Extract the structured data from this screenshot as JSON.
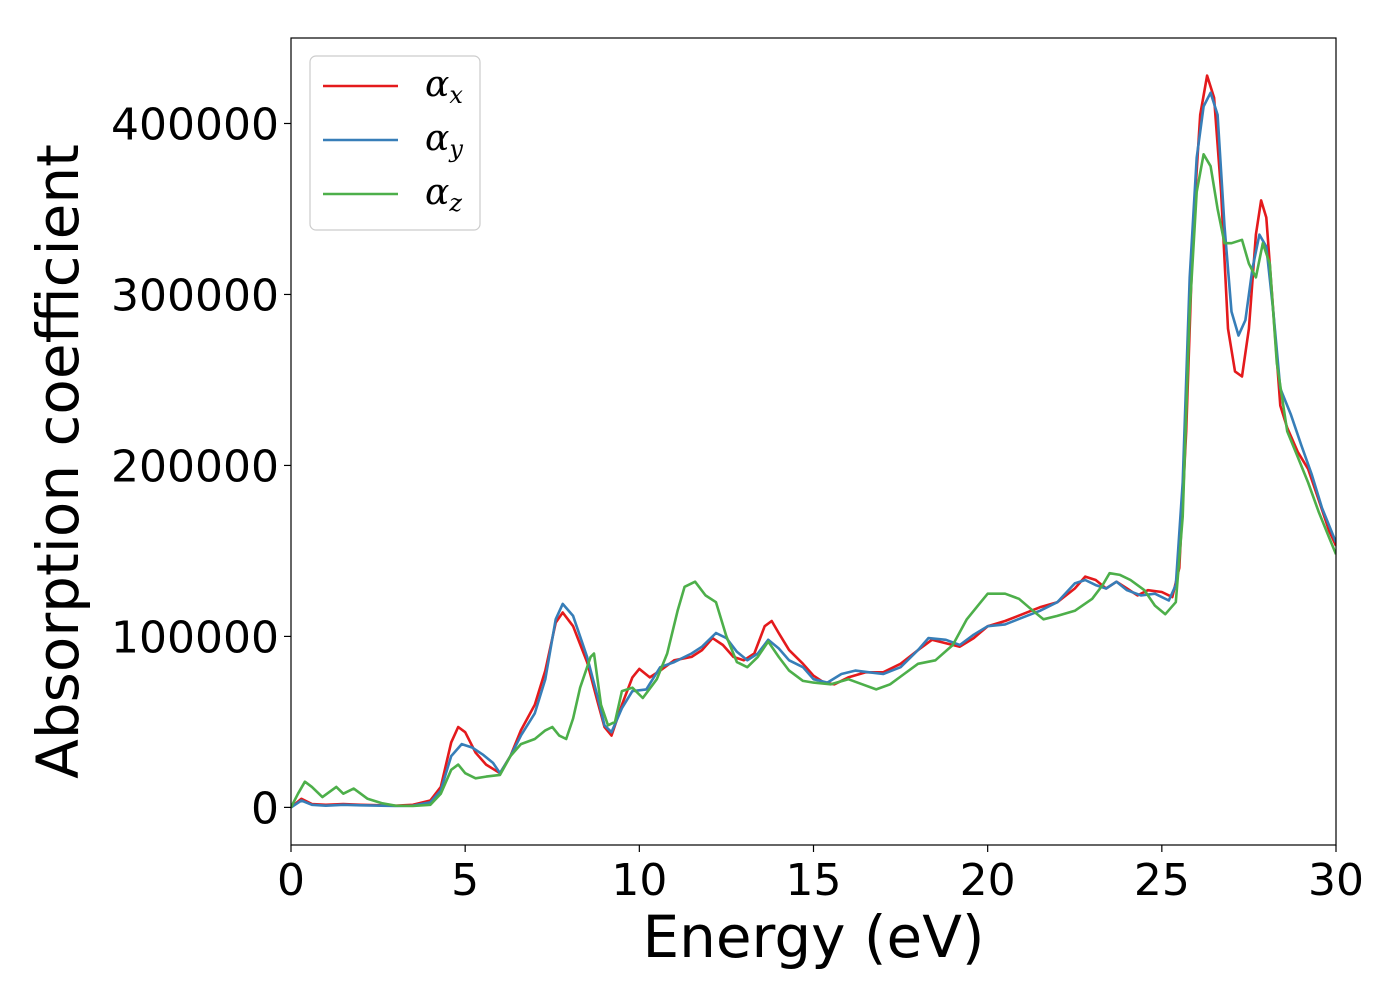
{
  "chart_data": {
    "type": "line",
    "title": "",
    "xlabel": "Energy (eV)",
    "ylabel": "Absorption coefficient",
    "xlim": [
      0,
      30
    ],
    "ylim": [
      -22000,
      450000
    ],
    "xticks": [
      0,
      5,
      10,
      15,
      20,
      25,
      30
    ],
    "yticks": [
      0,
      100000,
      200000,
      300000,
      400000
    ],
    "grid": false,
    "legend_position": "top-left",
    "series": [
      {
        "name": "α_x",
        "name_base": "α",
        "name_sub": "x",
        "color": "#e41a1c",
        "points": [
          [
            0,
            0
          ],
          [
            0.3,
            5000
          ],
          [
            0.6,
            2000
          ],
          [
            1.0,
            1500
          ],
          [
            1.5,
            2000
          ],
          [
            2.0,
            1500
          ],
          [
            3.0,
            1000
          ],
          [
            3.5,
            1500
          ],
          [
            4.0,
            4000
          ],
          [
            4.3,
            12000
          ],
          [
            4.6,
            38000
          ],
          [
            4.8,
            47000
          ],
          [
            5.0,
            44000
          ],
          [
            5.3,
            32000
          ],
          [
            5.6,
            25000
          ],
          [
            6.0,
            20000
          ],
          [
            6.3,
            30000
          ],
          [
            6.6,
            45000
          ],
          [
            7.0,
            60000
          ],
          [
            7.3,
            80000
          ],
          [
            7.6,
            108000
          ],
          [
            7.8,
            114000
          ],
          [
            8.1,
            106000
          ],
          [
            8.5,
            85000
          ],
          [
            8.8,
            62000
          ],
          [
            9.0,
            47000
          ],
          [
            9.2,
            42000
          ],
          [
            9.5,
            60000
          ],
          [
            9.8,
            76000
          ],
          [
            10.0,
            81000
          ],
          [
            10.3,
            76000
          ],
          [
            10.6,
            80000
          ],
          [
            11.0,
            86000
          ],
          [
            11.5,
            88000
          ],
          [
            11.8,
            92000
          ],
          [
            12.1,
            99000
          ],
          [
            12.4,
            95000
          ],
          [
            12.7,
            88000
          ],
          [
            13.0,
            86000
          ],
          [
            13.3,
            90000
          ],
          [
            13.6,
            106000
          ],
          [
            13.8,
            109000
          ],
          [
            14.0,
            102000
          ],
          [
            14.3,
            92000
          ],
          [
            14.7,
            84000
          ],
          [
            15.0,
            77000
          ],
          [
            15.3,
            73000
          ],
          [
            15.6,
            72000
          ],
          [
            16.0,
            76000
          ],
          [
            16.5,
            79000
          ],
          [
            17.0,
            79000
          ],
          [
            17.5,
            84000
          ],
          [
            18.0,
            92000
          ],
          [
            18.4,
            98000
          ],
          [
            18.8,
            96000
          ],
          [
            19.2,
            94000
          ],
          [
            19.6,
            99000
          ],
          [
            20.0,
            106000
          ],
          [
            20.5,
            109000
          ],
          [
            21.0,
            113000
          ],
          [
            21.5,
            117000
          ],
          [
            22.0,
            120000
          ],
          [
            22.5,
            128000
          ],
          [
            22.8,
            135000
          ],
          [
            23.1,
            133000
          ],
          [
            23.4,
            128000
          ],
          [
            23.7,
            132000
          ],
          [
            24.0,
            128000
          ],
          [
            24.3,
            124000
          ],
          [
            24.6,
            127000
          ],
          [
            25.0,
            126000
          ],
          [
            25.3,
            123000
          ],
          [
            25.5,
            140000
          ],
          [
            25.7,
            220000
          ],
          [
            25.9,
            340000
          ],
          [
            26.1,
            405000
          ],
          [
            26.3,
            428000
          ],
          [
            26.5,
            415000
          ],
          [
            26.7,
            360000
          ],
          [
            26.9,
            280000
          ],
          [
            27.1,
            255000
          ],
          [
            27.3,
            252000
          ],
          [
            27.5,
            280000
          ],
          [
            27.7,
            335000
          ],
          [
            27.85,
            355000
          ],
          [
            28.0,
            345000
          ],
          [
            28.2,
            290000
          ],
          [
            28.4,
            235000
          ],
          [
            28.6,
            222000
          ],
          [
            28.9,
            208000
          ],
          [
            29.2,
            198000
          ],
          [
            29.5,
            180000
          ],
          [
            29.8,
            162000
          ],
          [
            30.0,
            153000
          ]
        ]
      },
      {
        "name": "α_y",
        "name_base": "α",
        "name_sub": "y",
        "color": "#377eb8",
        "points": [
          [
            0,
            0
          ],
          [
            0.3,
            4000
          ],
          [
            0.6,
            1500
          ],
          [
            1.0,
            1000
          ],
          [
            1.5,
            1500
          ],
          [
            2.0,
            1200
          ],
          [
            3.0,
            800
          ],
          [
            3.5,
            1000
          ],
          [
            4.0,
            3000
          ],
          [
            4.3,
            10000
          ],
          [
            4.6,
            30000
          ],
          [
            4.9,
            37000
          ],
          [
            5.2,
            35000
          ],
          [
            5.5,
            31000
          ],
          [
            5.8,
            26000
          ],
          [
            6.0,
            20000
          ],
          [
            6.3,
            30000
          ],
          [
            6.6,
            42000
          ],
          [
            7.0,
            55000
          ],
          [
            7.3,
            75000
          ],
          [
            7.6,
            110000
          ],
          [
            7.8,
            119000
          ],
          [
            8.1,
            112000
          ],
          [
            8.5,
            88000
          ],
          [
            8.8,
            65000
          ],
          [
            9.0,
            48000
          ],
          [
            9.2,
            44000
          ],
          [
            9.5,
            58000
          ],
          [
            9.8,
            68000
          ],
          [
            10.2,
            69000
          ],
          [
            10.6,
            82000
          ],
          [
            11.0,
            85000
          ],
          [
            11.5,
            90000
          ],
          [
            11.8,
            94000
          ],
          [
            12.2,
            102000
          ],
          [
            12.5,
            99000
          ],
          [
            12.8,
            91000
          ],
          [
            13.1,
            86000
          ],
          [
            13.4,
            90000
          ],
          [
            13.7,
            98000
          ],
          [
            14.0,
            93000
          ],
          [
            14.3,
            86000
          ],
          [
            14.7,
            82000
          ],
          [
            15.0,
            75000
          ],
          [
            15.4,
            73000
          ],
          [
            15.8,
            78000
          ],
          [
            16.2,
            80000
          ],
          [
            16.6,
            79000
          ],
          [
            17.0,
            78000
          ],
          [
            17.5,
            82000
          ],
          [
            18.0,
            92000
          ],
          [
            18.3,
            99000
          ],
          [
            18.8,
            98000
          ],
          [
            19.2,
            95000
          ],
          [
            19.6,
            101000
          ],
          [
            20.0,
            106000
          ],
          [
            20.5,
            107000
          ],
          [
            21.0,
            111000
          ],
          [
            21.5,
            115000
          ],
          [
            22.0,
            120000
          ],
          [
            22.5,
            131000
          ],
          [
            22.8,
            133000
          ],
          [
            23.1,
            130000
          ],
          [
            23.4,
            128000
          ],
          [
            23.7,
            132000
          ],
          [
            24.0,
            127000
          ],
          [
            24.4,
            124000
          ],
          [
            24.8,
            125000
          ],
          [
            25.2,
            121000
          ],
          [
            25.4,
            130000
          ],
          [
            25.6,
            190000
          ],
          [
            25.8,
            310000
          ],
          [
            26.0,
            380000
          ],
          [
            26.2,
            410000
          ],
          [
            26.4,
            418000
          ],
          [
            26.6,
            405000
          ],
          [
            26.8,
            340000
          ],
          [
            27.0,
            290000
          ],
          [
            27.2,
            276000
          ],
          [
            27.4,
            285000
          ],
          [
            27.6,
            315000
          ],
          [
            27.8,
            335000
          ],
          [
            28.0,
            328000
          ],
          [
            28.2,
            290000
          ],
          [
            28.4,
            245000
          ],
          [
            28.7,
            230000
          ],
          [
            29.0,
            212000
          ],
          [
            29.3,
            195000
          ],
          [
            29.6,
            175000
          ],
          [
            30.0,
            155000
          ]
        ]
      },
      {
        "name": "α_z",
        "name_base": "α",
        "name_sub": "z",
        "color": "#4daf4a",
        "points": [
          [
            0,
            0
          ],
          [
            0.2,
            8000
          ],
          [
            0.4,
            15000
          ],
          [
            0.6,
            12000
          ],
          [
            0.9,
            6000
          ],
          [
            1.3,
            12000
          ],
          [
            1.5,
            8000
          ],
          [
            1.8,
            11000
          ],
          [
            2.0,
            8000
          ],
          [
            2.2,
            5000
          ],
          [
            2.6,
            2500
          ],
          [
            3.0,
            1000
          ],
          [
            3.5,
            800
          ],
          [
            4.0,
            1500
          ],
          [
            4.3,
            8000
          ],
          [
            4.6,
            22000
          ],
          [
            4.8,
            25000
          ],
          [
            5.0,
            20000
          ],
          [
            5.3,
            17000
          ],
          [
            5.6,
            18000
          ],
          [
            6.0,
            19000
          ],
          [
            6.3,
            30000
          ],
          [
            6.6,
            37000
          ],
          [
            7.0,
            40000
          ],
          [
            7.3,
            45000
          ],
          [
            7.5,
            47000
          ],
          [
            7.7,
            42000
          ],
          [
            7.9,
            40000
          ],
          [
            8.1,
            52000
          ],
          [
            8.3,
            70000
          ],
          [
            8.6,
            88000
          ],
          [
            8.7,
            90000
          ],
          [
            8.9,
            60000
          ],
          [
            9.1,
            48000
          ],
          [
            9.3,
            50000
          ],
          [
            9.5,
            68000
          ],
          [
            9.8,
            70000
          ],
          [
            10.1,
            64000
          ],
          [
            10.5,
            75000
          ],
          [
            10.8,
            90000
          ],
          [
            11.1,
            115000
          ],
          [
            11.3,
            129000
          ],
          [
            11.6,
            132000
          ],
          [
            11.9,
            124000
          ],
          [
            12.2,
            120000
          ],
          [
            12.5,
            100000
          ],
          [
            12.8,
            85000
          ],
          [
            13.1,
            82000
          ],
          [
            13.4,
            88000
          ],
          [
            13.7,
            97000
          ],
          [
            14.0,
            88000
          ],
          [
            14.3,
            80000
          ],
          [
            14.7,
            74000
          ],
          [
            15.0,
            73000
          ],
          [
            15.5,
            72000
          ],
          [
            16.0,
            75000
          ],
          [
            16.4,
            72000
          ],
          [
            16.8,
            69000
          ],
          [
            17.2,
            72000
          ],
          [
            17.6,
            78000
          ],
          [
            18.0,
            84000
          ],
          [
            18.5,
            86000
          ],
          [
            19.0,
            95000
          ],
          [
            19.4,
            110000
          ],
          [
            19.8,
            120000
          ],
          [
            20.0,
            125000
          ],
          [
            20.5,
            125000
          ],
          [
            20.9,
            122000
          ],
          [
            21.3,
            115000
          ],
          [
            21.6,
            110000
          ],
          [
            22.0,
            112000
          ],
          [
            22.5,
            115000
          ],
          [
            23.0,
            122000
          ],
          [
            23.3,
            130000
          ],
          [
            23.5,
            137000
          ],
          [
            23.8,
            136000
          ],
          [
            24.1,
            133000
          ],
          [
            24.5,
            127000
          ],
          [
            24.8,
            118000
          ],
          [
            25.1,
            113000
          ],
          [
            25.4,
            120000
          ],
          [
            25.6,
            170000
          ],
          [
            25.8,
            290000
          ],
          [
            26.0,
            360000
          ],
          [
            26.2,
            382000
          ],
          [
            26.4,
            375000
          ],
          [
            26.6,
            350000
          ],
          [
            26.8,
            330000
          ],
          [
            27.0,
            330000
          ],
          [
            27.3,
            332000
          ],
          [
            27.5,
            318000
          ],
          [
            27.7,
            310000
          ],
          [
            27.9,
            330000
          ],
          [
            28.1,
            318000
          ],
          [
            28.3,
            260000
          ],
          [
            28.6,
            220000
          ],
          [
            28.9,
            205000
          ],
          [
            29.2,
            190000
          ],
          [
            29.5,
            173000
          ],
          [
            29.8,
            158000
          ],
          [
            30.0,
            148000
          ]
        ]
      }
    ]
  }
}
